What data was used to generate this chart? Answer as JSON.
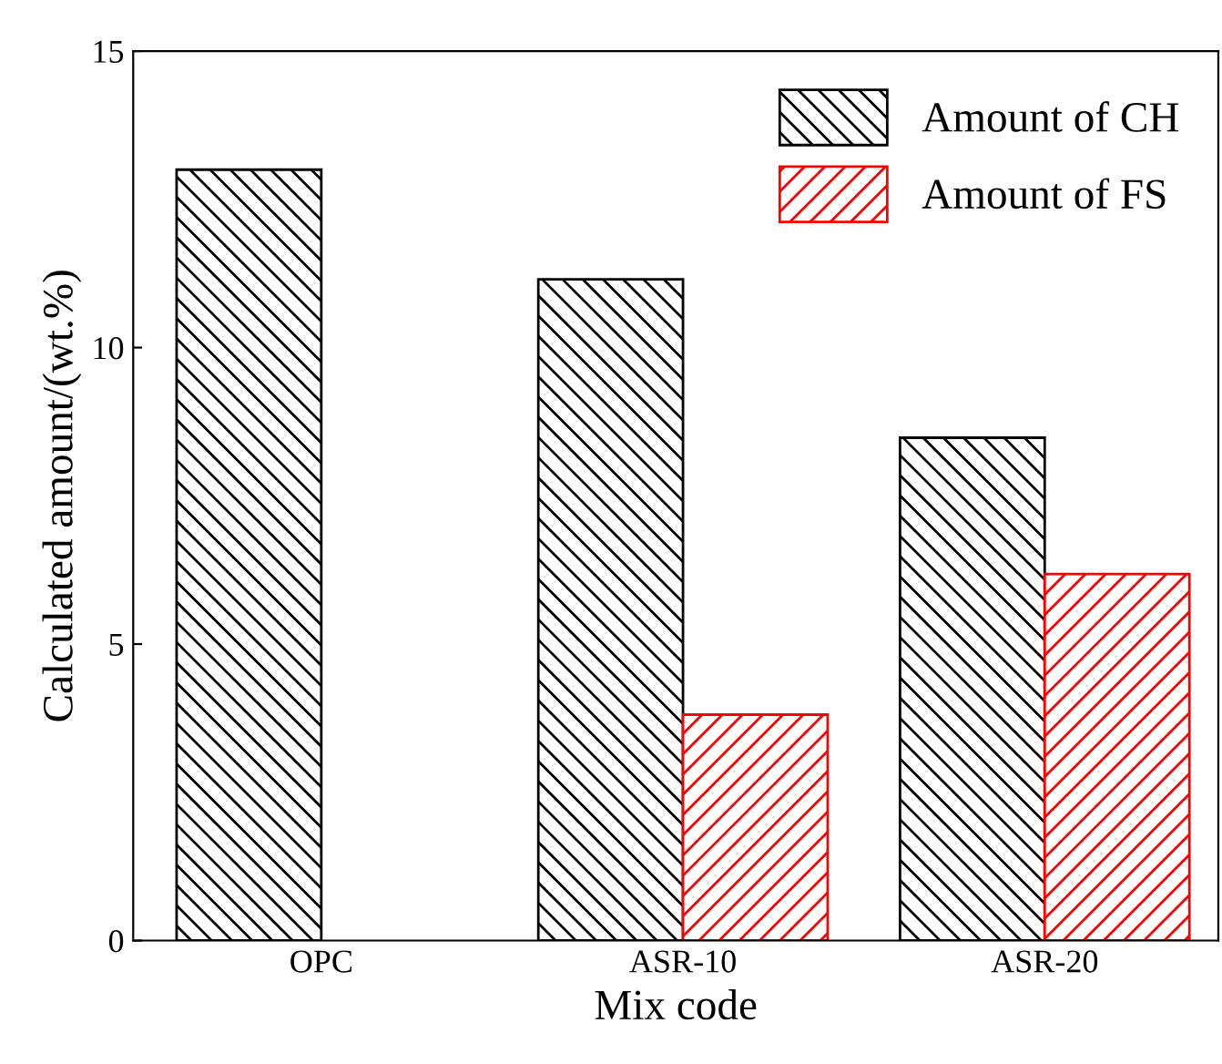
{
  "chart_data": {
    "type": "bar",
    "xlabel": "Mix code",
    "ylabel": "Calculated amount/(wt.%)",
    "categories": [
      "OPC",
      "ASR-10",
      "ASR-20"
    ],
    "series": [
      {
        "name": "Amount of CH",
        "color": "#000000",
        "values": [
          13.0,
          11.15,
          8.48
        ]
      },
      {
        "name": "Amount of FS",
        "color": "#ff0000",
        "values": [
          null,
          3.81,
          6.18
        ]
      }
    ],
    "ylim": [
      0,
      15
    ],
    "yticks": [
      0,
      5,
      10,
      15
    ],
    "grid": false,
    "legend": "top right"
  }
}
